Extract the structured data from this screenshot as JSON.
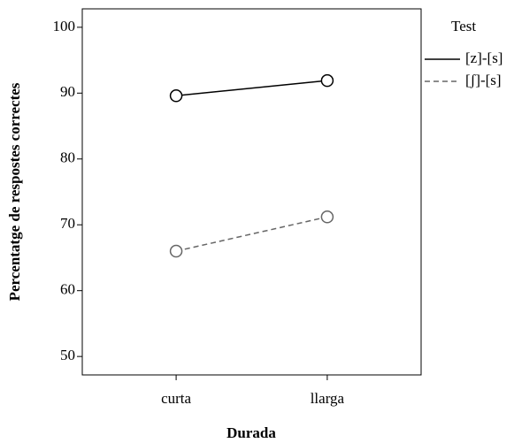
{
  "chart_data": {
    "type": "line",
    "x_label": "Durada",
    "y_label": "Percentatge de respostes correctes",
    "legend_title": "Test",
    "categories": [
      "curta",
      "llarga"
    ],
    "series": [
      {
        "name": "[z]-[s]",
        "color": "#000000",
        "linestyle": "solid",
        "values": [
          89.6,
          91.9
        ]
      },
      {
        "name": "[ʃ]-[s]",
        "color": "#666666",
        "linestyle": "dashed",
        "values": [
          66.0,
          71.2
        ]
      }
    ],
    "ylim": [
      47.2,
      102.8
    ],
    "yticks": [
      50,
      60,
      70,
      80,
      90,
      100
    ],
    "legend": "right",
    "marker": "hollow-circle"
  }
}
